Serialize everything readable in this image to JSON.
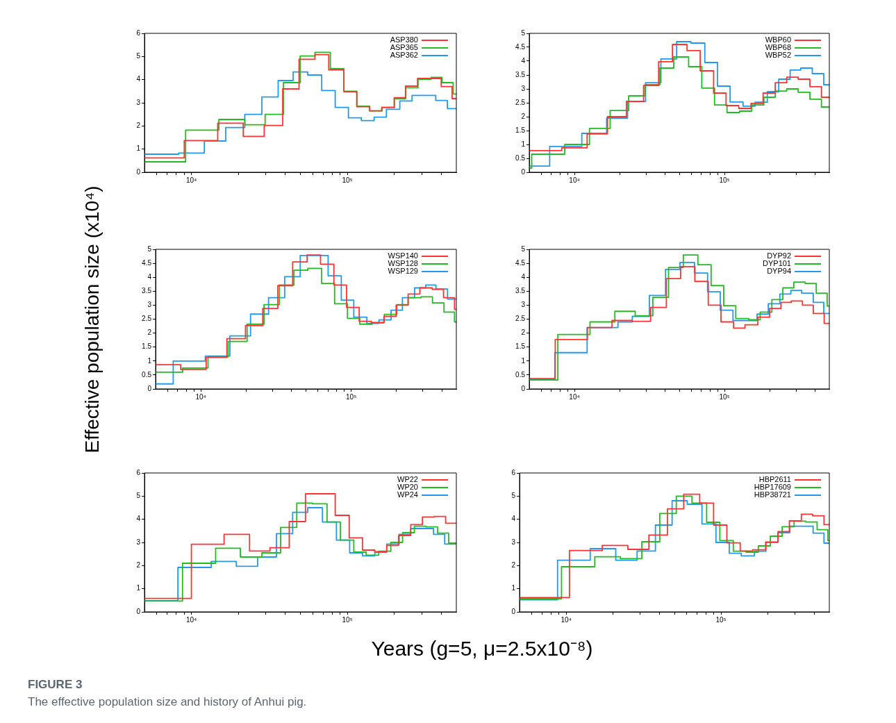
{
  "chart_data": [
    {
      "type": "step",
      "xlim": [
        5000,
        500000
      ],
      "ylim": [
        0,
        6
      ],
      "yticks": [
        0,
        1,
        2,
        3,
        4,
        5,
        6
      ],
      "legend": "top right",
      "grid": false,
      "xticks": [
        {
          "value": 6000,
          "label": null
        },
        {
          "value": 7000,
          "label": null
        },
        {
          "value": 8000,
          "label": null
        },
        {
          "value": 9000,
          "label": null
        },
        {
          "value": 10000,
          "label": "10⁴"
        },
        {
          "value": 20000,
          "label": null
        },
        {
          "value": 30000,
          "label": null
        },
        {
          "value": 40000,
          "label": null
        },
        {
          "value": 50000,
          "label": null
        },
        {
          "value": 60000,
          "label": null
        },
        {
          "value": 70000,
          "label": null
        },
        {
          "value": 80000,
          "label": null
        },
        {
          "value": 90000,
          "label": null
        },
        {
          "value": 100000,
          "label": "10⁵"
        },
        {
          "value": 200000,
          "label": null
        },
        {
          "value": 300000,
          "label": null
        },
        {
          "value": 400000,
          "label": null
        }
      ],
      "log": "x",
      "series": [
        {
          "name": "ASP380",
          "color": "#ff3333",
          "x": [
            5000,
            9000,
            14750,
            21500,
            29300,
            38500,
            49000,
            62000,
            76000,
            95000,
            115000,
            139000,
            166000,
            200000,
            236000,
            282000,
            400000,
            470000,
            500000
          ],
          "values": [
            0.62,
            1.37,
            2.12,
            1.55,
            2.02,
            3.6,
            4.88,
            5.08,
            4.42,
            3.48,
            2.83,
            2.65,
            2.8,
            3.22,
            3.72,
            4.05,
            3.7,
            3.18,
            3.18
          ]
        },
        {
          "name": "ASP365",
          "color": "#22bb22",
          "x": [
            5000,
            9180,
            15000,
            22000,
            29700,
            38900,
            49800,
            62000,
            77800,
            95000,
            115000,
            139000,
            167000,
            200000,
            237000,
            284000,
            344000,
            405000,
            477000,
            500000
          ],
          "values": [
            0.45,
            1.82,
            2.28,
            2.05,
            2.5,
            3.87,
            5.02,
            5.18,
            4.47,
            3.5,
            2.85,
            2.65,
            2.8,
            3.18,
            3.65,
            4.02,
            4.1,
            3.87,
            3.38,
            3.38
          ]
        },
        {
          "name": "ASP362",
          "color": "#2299ee",
          "x": [
            5000,
            8280,
            12100,
            16600,
            22000,
            28300,
            36000,
            44900,
            55700,
            68500,
            83600,
            101600,
            123000,
            148500,
            178000,
            217000,
            260000,
            369000,
            438000,
            500000
          ],
          "values": [
            0.78,
            0.83,
            1.35,
            1.93,
            2.5,
            3.25,
            3.96,
            4.33,
            4.2,
            3.53,
            2.8,
            2.35,
            2.23,
            2.38,
            2.72,
            3.08,
            3.32,
            3.1,
            2.75,
            2.75
          ]
        }
      ]
    },
    {
      "type": "step",
      "xlim": [
        5000,
        500000
      ],
      "ylim": [
        0,
        5
      ],
      "yticks": [
        0,
        0.5,
        1,
        1.5,
        2,
        2.5,
        3,
        3.5,
        4,
        4.5,
        5
      ],
      "legend": "top right",
      "grid": false,
      "xticks": [
        {
          "value": 6000,
          "label": null
        },
        {
          "value": 7000,
          "label": null
        },
        {
          "value": 8000,
          "label": null
        },
        {
          "value": 9000,
          "label": null
        },
        {
          "value": 10000,
          "label": "10⁴"
        },
        {
          "value": 20000,
          "label": null
        },
        {
          "value": 30000,
          "label": null
        },
        {
          "value": 40000,
          "label": null
        },
        {
          "value": 50000,
          "label": null
        },
        {
          "value": 60000,
          "label": null
        },
        {
          "value": 70000,
          "label": null
        },
        {
          "value": 80000,
          "label": null
        },
        {
          "value": 90000,
          "label": null
        },
        {
          "value": 100000,
          "label": "10⁵"
        },
        {
          "value": 200000,
          "label": null
        },
        {
          "value": 300000,
          "label": null
        },
        {
          "value": 400000,
          "label": null
        }
      ],
      "log": "x",
      "series": [
        {
          "name": "WBP60",
          "color": "#ff3333",
          "x": [
            5000,
            8230,
            12150,
            16600,
            22200,
            28900,
            36400,
            45000,
            56300,
            68900,
            84700,
            102500,
            124500,
            150300,
            181000,
            218000,
            260000,
            310000,
            371000,
            443000,
            500000
          ],
          "values": [
            0.78,
            0.88,
            1.38,
            2.0,
            2.55,
            3.12,
            3.98,
            4.6,
            4.38,
            3.65,
            2.85,
            2.4,
            2.3,
            2.48,
            2.85,
            3.22,
            3.42,
            3.35,
            3.08,
            2.7,
            2.7
          ]
        },
        {
          "name": "WBP68",
          "color": "#22bb22",
          "x": [
            5000,
            5190,
            8620,
            12600,
            17300,
            23000,
            29500,
            37100,
            45900,
            57700,
            70600,
            85900,
            104000,
            126000,
            152000,
            183000,
            218000,
            260000,
            310000,
            371000,
            443000,
            500000
          ],
          "values": [
            0.15,
            0.65,
            1.0,
            1.58,
            2.22,
            2.75,
            3.15,
            3.75,
            4.15,
            3.8,
            3.03,
            2.42,
            2.15,
            2.2,
            2.42,
            2.7,
            2.92,
            3.0,
            2.88,
            2.63,
            2.35,
            2.35
          ]
        },
        {
          "name": "WBP52",
          "color": "#2299ee",
          "x": [
            5000,
            6840,
            11200,
            16400,
            22600,
            29800,
            37700,
            48000,
            59800,
            74000,
            89900,
            109000,
            133000,
            160000,
            193000,
            230000,
            274000,
            322000,
            385000,
            459000,
            500000
          ],
          "values": [
            0.22,
            0.93,
            1.4,
            1.95,
            2.55,
            3.22,
            4.08,
            4.7,
            4.65,
            3.95,
            3.1,
            2.53,
            2.38,
            2.52,
            2.9,
            3.35,
            3.68,
            3.75,
            3.55,
            3.15,
            3.15
          ]
        }
      ]
    },
    {
      "type": "step",
      "xlim": [
        5000,
        500000
      ],
      "ylim": [
        0,
        5
      ],
      "yticks": [
        0,
        0.5,
        1,
        1.5,
        2,
        2.5,
        3,
        3.5,
        4,
        4.5,
        5
      ],
      "legend": "top right",
      "grid": false,
      "ylabel": "Effective population size (x10⁴)",
      "xticks": [
        {
          "value": 6000,
          "label": null
        },
        {
          "value": 7000,
          "label": null
        },
        {
          "value": 8000,
          "label": null
        },
        {
          "value": 9000,
          "label": null
        },
        {
          "value": 10000,
          "label": "10⁴"
        },
        {
          "value": 20000,
          "label": null
        },
        {
          "value": 30000,
          "label": null
        },
        {
          "value": 40000,
          "label": null
        },
        {
          "value": 50000,
          "label": null
        },
        {
          "value": 60000,
          "label": null
        },
        {
          "value": 70000,
          "label": null
        },
        {
          "value": 80000,
          "label": null
        },
        {
          "value": 90000,
          "label": null
        },
        {
          "value": 100000,
          "label": "10⁵"
        },
        {
          "value": 200000,
          "label": null
        },
        {
          "value": 300000,
          "label": null
        },
        {
          "value": 400000,
          "label": null
        }
      ],
      "log": "x",
      "series": [
        {
          "name": "WSP140",
          "color": "#ff3333",
          "x": [
            5000,
            7350,
            10850,
            14900,
            19800,
            25800,
            32500,
            40800,
            50900,
            62500,
            76700,
            93100,
            113000,
            136000,
            165000,
            199000,
            239000,
            286000,
            345000,
            411000,
            486000,
            500000
          ],
          "values": [
            0.87,
            0.7,
            1.13,
            1.8,
            2.27,
            2.88,
            3.7,
            4.55,
            4.8,
            4.47,
            3.72,
            2.92,
            2.42,
            2.37,
            2.6,
            3.0,
            3.4,
            3.62,
            3.57,
            3.27,
            2.85,
            2.85
          ]
        },
        {
          "name": "WSP128",
          "color": "#22bb22",
          "x": [
            5000,
            7570,
            11160,
            15200,
            20300,
            26300,
            33300,
            41600,
            51400,
            63600,
            77500,
            94400,
            114000,
            138000,
            166000,
            201000,
            239000,
            291000,
            347000,
            414000,
            486000,
            500000
          ],
          "values": [
            0.6,
            0.75,
            1.15,
            1.7,
            2.32,
            3.02,
            3.72,
            4.25,
            4.32,
            3.78,
            3.05,
            2.53,
            2.32,
            2.38,
            2.67,
            3.02,
            3.27,
            3.3,
            3.08,
            2.75,
            2.4,
            2.4
          ]
        },
        {
          "name": "WSP129",
          "color": "#2299ee",
          "x": [
            5000,
            6550,
            10700,
            15600,
            21400,
            28200,
            36100,
            45800,
            70200,
            85900,
            104000,
            127000,
            153000,
            184000,
            219000,
            264000,
            313000,
            366000,
            437000,
            500000
          ],
          "values": [
            0.18,
            1.0,
            1.18,
            1.9,
            2.68,
            3.27,
            4.02,
            4.78,
            4.05,
            3.18,
            2.57,
            2.35,
            2.47,
            2.82,
            3.27,
            3.62,
            3.72,
            3.58,
            3.22,
            3.22
          ]
        }
      ]
    },
    {
      "type": "step",
      "xlim": [
        5000,
        500000
      ],
      "ylim": [
        0,
        5
      ],
      "yticks": [
        0,
        0.5,
        1,
        1.5,
        2,
        2.5,
        3,
        3.5,
        4,
        4.5,
        5
      ],
      "legend": "top right",
      "grid": false,
      "xticks": [
        {
          "value": 6000,
          "label": null
        },
        {
          "value": 7000,
          "label": null
        },
        {
          "value": 8000,
          "label": null
        },
        {
          "value": 9000,
          "label": null
        },
        {
          "value": 10000,
          "label": "10⁴"
        },
        {
          "value": 20000,
          "label": null
        },
        {
          "value": 30000,
          "label": null
        },
        {
          "value": 40000,
          "label": null
        },
        {
          "value": 50000,
          "label": null
        },
        {
          "value": 60000,
          "label": null
        },
        {
          "value": 70000,
          "label": null
        },
        {
          "value": 80000,
          "label": null
        },
        {
          "value": 90000,
          "label": null
        },
        {
          "value": 100000,
          "label": "10⁵"
        },
        {
          "value": 200000,
          "label": null
        },
        {
          "value": 300000,
          "label": null
        },
        {
          "value": 400000,
          "label": null
        }
      ],
      "log": "x",
      "series": [
        {
          "name": "DYP92",
          "color": "#ff3333",
          "x": [
            5000,
            7450,
            12200,
            17800,
            24300,
            32200,
            41000,
            51000,
            63500,
            78000,
            94800,
            115000,
            137000,
            167000,
            200000,
            238000,
            279000,
            331000,
            391000,
            462000,
            500000
          ],
          "values": [
            0.37,
            1.77,
            2.2,
            2.45,
            2.42,
            2.92,
            3.95,
            4.38,
            3.85,
            3.0,
            2.4,
            2.18,
            2.3,
            2.57,
            2.88,
            3.1,
            3.15,
            3.0,
            2.7,
            2.35,
            2.35
          ]
        },
        {
          "name": "DYP101",
          "color": "#22bb22",
          "x": [
            5000,
            7750,
            12700,
            18600,
            25400,
            33300,
            42400,
            53200,
            66500,
            81500,
            98900,
            119000,
            145000,
            173000,
            207000,
            245000,
            290000,
            345000,
            409000,
            484000,
            500000
          ],
          "values": [
            0.32,
            1.95,
            2.4,
            2.78,
            2.62,
            3.28,
            4.35,
            4.8,
            4.45,
            3.7,
            2.98,
            2.52,
            2.48,
            2.75,
            3.2,
            3.62,
            3.83,
            3.78,
            3.43,
            2.97,
            2.97
          ]
        },
        {
          "name": "DYP94",
          "color": "#2299ee",
          "x": [
            5000,
            7400,
            12150,
            19500,
            24300,
            31600,
            40500,
            50500,
            63100,
            77200,
            93800,
            114000,
            165000,
            196000,
            234000,
            277000,
            327000,
            391000,
            459000,
            500000
          ],
          "values": [
            0.33,
            1.3,
            2.2,
            2.4,
            2.6,
            3.35,
            4.28,
            4.53,
            4.15,
            3.48,
            2.82,
            2.45,
            2.68,
            3.05,
            3.4,
            3.53,
            3.43,
            3.1,
            2.7,
            2.7
          ]
        }
      ]
    },
    {
      "type": "step",
      "xlim": [
        5000,
        500000
      ],
      "ylim": [
        0,
        6
      ],
      "yticks": [
        0,
        1,
        2,
        3,
        4,
        5,
        6
      ],
      "legend": "top right",
      "grid": false,
      "xlabel": "Years (g=5, μ=2.5x10⁻⁸)",
      "xticks": [
        {
          "value": 6000,
          "label": null
        },
        {
          "value": 7000,
          "label": null
        },
        {
          "value": 8000,
          "label": null
        },
        {
          "value": 9000,
          "label": null
        },
        {
          "value": 10000,
          "label": "10⁴"
        },
        {
          "value": 20000,
          "label": null
        },
        {
          "value": 30000,
          "label": null
        },
        {
          "value": 40000,
          "label": null
        },
        {
          "value": 50000,
          "label": null
        },
        {
          "value": 60000,
          "label": null
        },
        {
          "value": 70000,
          "label": null
        },
        {
          "value": 80000,
          "label": null
        },
        {
          "value": 90000,
          "label": null
        },
        {
          "value": 100000,
          "label": "10⁵"
        },
        {
          "value": 200000,
          "label": null
        },
        {
          "value": 300000,
          "label": null
        },
        {
          "value": 400000,
          "label": null
        }
      ],
      "log": "x",
      "series": [
        {
          "name": "WP22",
          "color": "#ff3333",
          "x": [
            5000,
            10000,
            16200,
            23600,
            31900,
            42400,
            53900,
            83600,
            102800,
            125000,
            150000,
            179000,
            213000,
            255000,
            303000,
            361000,
            427000,
            500000
          ],
          "values": [
            0.58,
            2.92,
            3.35,
            2.63,
            2.77,
            3.9,
            5.1,
            4.17,
            3.2,
            2.67,
            2.6,
            2.87,
            3.3,
            3.77,
            4.1,
            4.12,
            3.83,
            3.83
          ]
        },
        {
          "name": "WP20",
          "color": "#22bb22",
          "x": [
            5000,
            8770,
            14300,
            20600,
            28300,
            37300,
            47400,
            59700,
            74100,
            90200,
            110000,
            132000,
            159000,
            190000,
            226000,
            269000,
            319000,
            379000,
            446000,
            500000
          ],
          "values": [
            0.47,
            2.1,
            2.75,
            2.37,
            2.55,
            3.65,
            4.7,
            4.67,
            3.88,
            3.1,
            2.58,
            2.45,
            2.62,
            3.0,
            3.42,
            3.7,
            3.67,
            3.4,
            2.97,
            2.97
          ]
        },
        {
          "name": "WP24",
          "color": "#2299ee",
          "x": [
            5000,
            8190,
            13400,
            19400,
            26600,
            35100,
            44600,
            55700,
            69200,
            85100,
            103500,
            125000,
            150000,
            179000,
            215000,
            255000,
            357000,
            421000,
            500000
          ],
          "values": [
            0.48,
            1.92,
            2.18,
            1.97,
            2.37,
            3.38,
            4.3,
            4.5,
            3.88,
            3.1,
            2.55,
            2.42,
            2.57,
            2.93,
            3.35,
            3.6,
            3.35,
            2.93,
            2.93
          ]
        }
      ]
    },
    {
      "type": "step",
      "xlim": [
        5000,
        500000
      ],
      "ylim": [
        0,
        6
      ],
      "yticks": [
        0,
        1,
        2,
        3,
        4,
        5,
        6
      ],
      "legend": "top right",
      "grid": false,
      "annotations": [
        "FIGURE 3",
        "The effective population size and history of Anhui pig."
      ],
      "xticks": [
        {
          "value": 6000,
          "label": null
        },
        {
          "value": 7000,
          "label": null
        },
        {
          "value": 8000,
          "label": null
        },
        {
          "value": 9000,
          "label": null
        },
        {
          "value": 10000,
          "label": "10⁴"
        },
        {
          "value": 20000,
          "label": null
        },
        {
          "value": 30000,
          "label": null
        },
        {
          "value": 40000,
          "label": null
        },
        {
          "value": 50000,
          "label": null
        },
        {
          "value": 60000,
          "label": null
        },
        {
          "value": 70000,
          "label": null
        },
        {
          "value": 80000,
          "label": null
        },
        {
          "value": 90000,
          "label": null
        },
        {
          "value": 100000,
          "label": "10⁵"
        },
        {
          "value": 200000,
          "label": null
        },
        {
          "value": 300000,
          "label": null
        },
        {
          "value": 400000,
          "label": null
        }
      ],
      "log": "x",
      "series": [
        {
          "name": "HBP2611",
          "color": "#ff3333",
          "x": [
            5000,
            10500,
            17100,
            25000,
            34200,
            45100,
            57400,
            72800,
            89500,
            109000,
            133000,
            160000,
            194000,
            233000,
            276000,
            330000,
            390000,
            462000,
            500000
          ],
          "values": [
            0.62,
            2.65,
            2.87,
            2.7,
            3.32,
            4.45,
            5.08,
            4.7,
            3.75,
            2.98,
            2.63,
            2.68,
            3.02,
            3.47,
            3.93,
            4.22,
            4.15,
            3.77,
            3.77
          ]
        },
        {
          "name": "HBP17609",
          "color": "#22bb22",
          "x": [
            5000,
            9330,
            15300,
            22400,
            30800,
            40200,
            51400,
            64900,
            80700,
            98200,
            120000,
            145000,
            174000,
            208000,
            248000,
            296000,
            352000,
            417000,
            489000,
            500000
          ],
          "values": [
            0.57,
            1.95,
            2.38,
            2.3,
            3.03,
            4.25,
            5.0,
            4.7,
            3.87,
            3.08,
            2.62,
            2.58,
            2.85,
            3.27,
            3.68,
            3.92,
            3.88,
            3.55,
            3.08,
            3.08
          ]
        },
        {
          "name": "HBP38721",
          "color": "#2299ee",
          "x": [
            5000,
            8800,
            14300,
            20900,
            28700,
            37700,
            48300,
            60500,
            75300,
            92700,
            113000,
            135000,
            164000,
            195000,
            233000,
            278000,
            393000,
            462000,
            500000
          ],
          "values": [
            0.52,
            2.23,
            2.73,
            2.23,
            2.63,
            3.75,
            4.8,
            4.65,
            3.8,
            3.0,
            2.53,
            2.42,
            2.62,
            3.0,
            3.42,
            3.7,
            3.4,
            2.97,
            2.97
          ]
        }
      ]
    }
  ]
}
